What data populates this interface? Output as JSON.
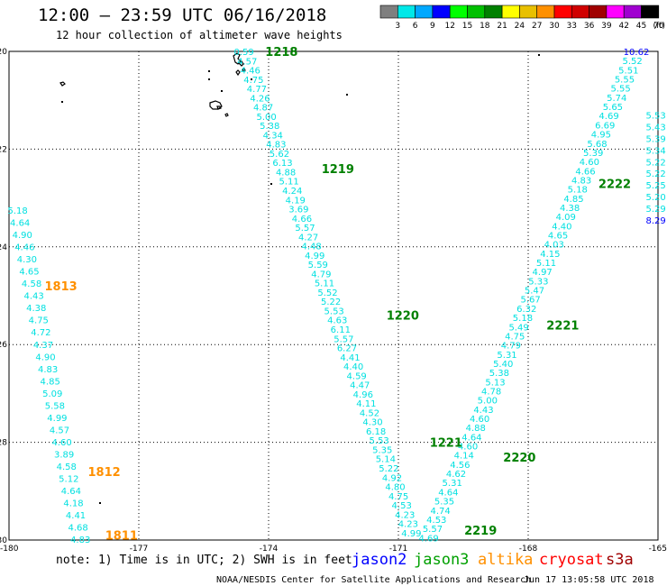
{
  "header": {
    "title": "12:00 – 23:59 UTC 06/16/2018",
    "subtitle": "12 hour collection of altimeter wave heights"
  },
  "colorbar": {
    "unit": "(ft)",
    "swatches": [
      {
        "color": "#7f7f7f",
        "label": "3"
      },
      {
        "color": "#00e8e8",
        "label": "6"
      },
      {
        "color": "#00a8ff",
        "label": "9"
      },
      {
        "color": "#0000ff",
        "label": "12"
      },
      {
        "color": "#00ff00",
        "label": "15"
      },
      {
        "color": "#00c000",
        "label": "18"
      },
      {
        "color": "#008000",
        "label": "21"
      },
      {
        "color": "#ffff00",
        "label": "24"
      },
      {
        "color": "#e8c000",
        "label": "27"
      },
      {
        "color": "#ff9000",
        "label": "30"
      },
      {
        "color": "#ff0000",
        "label": "33"
      },
      {
        "color": "#d00000",
        "label": "36"
      },
      {
        "color": "#a00000",
        "label": "39"
      },
      {
        "color": "#ff00ff",
        "label": "42"
      },
      {
        "color": "#a000d0",
        "label": "45"
      },
      {
        "color": "#ffffff",
        "label": "70"
      }
    ]
  },
  "axes": {
    "lat_labels": [
      "-20",
      "-22",
      "-24",
      "-26",
      "-28",
      "-30"
    ],
    "lon_labels": [
      "-180",
      "-177",
      "-174",
      "-171",
      "-168",
      "-165"
    ]
  },
  "note": "note: 1) Time is in UTC; 2) SWH is in feet",
  "legend": [
    {
      "name": "jason2",
      "color": "#0000ff"
    },
    {
      "name": "jason3",
      "color": "#00a000"
    },
    {
      "name": "altika",
      "color": "#ff9000"
    },
    {
      "name": "cryosat",
      "color": "#ff0000"
    },
    {
      "name": "s3a",
      "color": "#a00000"
    }
  ],
  "footer": {
    "credit": "NOAA/NESDIS Center for Satellite Applications and Research",
    "timestamp": "Jun 17 13:05:58 UTC 2018"
  },
  "colors": {
    "swh_values": "#00e0e0",
    "jason3_time": "#008000",
    "altika_time": "#ff9000"
  },
  "tracks": [
    {
      "name": "altika-west",
      "values": [
        "5.18",
        "4.64",
        "4.90",
        "4.46",
        "4.30",
        "4.65",
        "4.58",
        "4.43",
        "4.38",
        "4.75",
        "4.72",
        "4.37",
        "4.90",
        "4.83",
        "4.85",
        "5.09",
        "5.58",
        "4.99",
        "4.57",
        "4.60",
        "3.89",
        "4.58",
        "5.12",
        "4.64",
        "4.18",
        "4.41",
        "4.68",
        "4.83"
      ],
      "start": {
        "lon": -179.8,
        "lat": -23.25
      },
      "end": {
        "lon": -178.35,
        "lat": -29.98
      }
    },
    {
      "name": "jason3-1218",
      "values": [
        "0.59",
        "4.57",
        "4.46",
        "4.75",
        "4.77",
        "4.26",
        "4.87",
        "5.00",
        "5.38",
        "4.34",
        "4.83",
        "5.62",
        "6.13",
        "4.88",
        "5.11",
        "4.24",
        "4.19",
        "3.69",
        "4.66",
        "5.57",
        "4.27",
        "4.48",
        "4.99",
        "5.59",
        "4.79",
        "5.11",
        "5.52",
        "5.22",
        "5.53",
        "4.63",
        "6.11",
        "5.57",
        "6.27",
        "4.41",
        "4.40",
        "4.59",
        "4.47",
        "4.96",
        "4.11",
        "4.52",
        "4.30",
        "6.18",
        "5.53",
        "5.35",
        "5.14",
        "5.22",
        "4.92",
        "4.80",
        "4.75",
        "4.53",
        "4.23",
        "4.23",
        "4.99"
      ],
      "start": {
        "lon": -174.57,
        "lat": -20.0
      },
      "end": {
        "lon": -170.7,
        "lat": -29.85
      }
    },
    {
      "name": "jason3-2222",
      "values": [
        "10.62",
        "5.52",
        "5.51",
        "5.55",
        "5.55",
        "5.74",
        "5.65",
        "4.69",
        "6.69",
        "4.95",
        "5.68",
        "5.39",
        "4.60",
        "4.66",
        "4.83",
        "5.18",
        "4.85",
        "4.38",
        "4.09",
        "4.40",
        "4.65",
        "4.03",
        "4.15",
        "5.11",
        "4.97",
        "5.33",
        "5.47",
        "5.67",
        "6.32",
        "5.18",
        "5.49",
        "4.75",
        "4.79",
        "5.31",
        "5.40",
        "5.38",
        "5.13",
        "4.78",
        "5.00",
        "4.43",
        "4.60",
        "4.88",
        "4.64",
        "4.60",
        "4.14",
        "4.56",
        "4.62",
        "5.31",
        "4.64",
        "5.35",
        "4.74",
        "4.53",
        "5.57",
        "4.69"
      ],
      "start": {
        "lon": -165.5,
        "lat": -20.0
      },
      "end": {
        "lon": -170.3,
        "lat": -29.95
      }
    },
    {
      "name": "east-edge",
      "values": [
        "5.53",
        "5.43",
        "5.39",
        "5.34",
        "5.22",
        "5.22",
        "5.25",
        "5.20",
        "5.29",
        "8.29"
      ],
      "start": {
        "lon": -165.05,
        "lat": -21.3
      },
      "end": {
        "lon": -165.05,
        "lat": -23.45
      }
    }
  ],
  "time_labels": [
    {
      "text": "1218",
      "lon": -173.7,
      "lat": -20.0,
      "kind": "jason3"
    },
    {
      "text": "1219",
      "lon": -172.4,
      "lat": -22.4,
      "kind": "jason3"
    },
    {
      "text": "1220",
      "lon": -170.9,
      "lat": -25.4,
      "kind": "jason3"
    },
    {
      "text": "1221",
      "lon": -169.9,
      "lat": -28.0,
      "kind": "jason3"
    },
    {
      "text": "2219",
      "lon": -169.1,
      "lat": -29.8,
      "kind": "jason3"
    },
    {
      "text": "2220",
      "lon": -168.2,
      "lat": -28.3,
      "kind": "jason3"
    },
    {
      "text": "2221",
      "lon": -167.2,
      "lat": -25.6,
      "kind": "jason3"
    },
    {
      "text": "2222",
      "lon": -166.0,
      "lat": -22.7,
      "kind": "jason3"
    },
    {
      "text": "1813",
      "lon": -178.8,
      "lat": -24.8,
      "kind": "altika"
    },
    {
      "text": "1812",
      "lon": -177.8,
      "lat": -28.6,
      "kind": "altika"
    },
    {
      "text": "1811",
      "lon": -177.4,
      "lat": -29.9,
      "kind": "altika"
    }
  ]
}
